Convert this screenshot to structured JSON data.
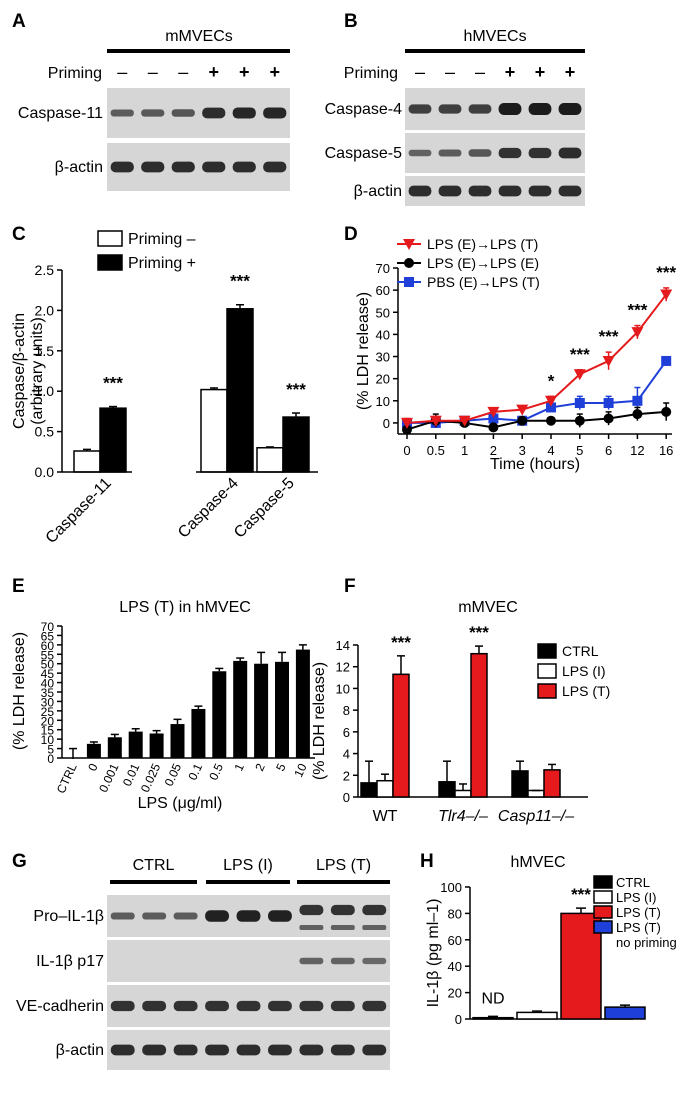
{
  "panels": {
    "A": {
      "letter": "A",
      "header": "mMVECs",
      "priming_label": "Priming",
      "priming_signs": [
        "–",
        "–",
        "–",
        "+",
        "+",
        "+"
      ],
      "blots": [
        {
          "label": "Caspase-11",
          "intensity": [
            0.45,
            0.48,
            0.5,
            0.85,
            0.9,
            0.9
          ]
        },
        {
          "label": "β-actin",
          "intensity": [
            0.85,
            0.85,
            0.85,
            0.85,
            0.85,
            0.85
          ]
        }
      ]
    },
    "B": {
      "letter": "B",
      "header": "hMVECs",
      "priming_label": "Priming",
      "priming_signs": [
        "–",
        "–",
        "–",
        "+",
        "+",
        "+"
      ],
      "blots": [
        {
          "label": "Caspase-4",
          "intensity": [
            0.7,
            0.7,
            0.7,
            1.0,
            1.0,
            1.0
          ]
        },
        {
          "label": "Caspase-5",
          "intensity": [
            0.4,
            0.45,
            0.5,
            0.8,
            0.8,
            0.85
          ]
        },
        {
          "label": "β-actin",
          "intensity": [
            0.85,
            0.85,
            0.85,
            0.85,
            0.85,
            0.85
          ]
        }
      ]
    },
    "G": {
      "letter": "G",
      "groups": [
        "CTRL",
        "LPS (I)",
        "LPS (T)"
      ],
      "blots": [
        {
          "label": "Pro–IL-1β",
          "intensity": [
            0.45,
            0.45,
            0.45,
            0.95,
            0.95,
            0.95,
            0.8,
            0.8,
            0.8
          ]
        },
        {
          "label": "IL-1β p17",
          "intensity": [
            0,
            0,
            0,
            0,
            0,
            0,
            0.4,
            0.4,
            0.35
          ]
        },
        {
          "label": "VE-cadherin",
          "intensity": [
            0.8,
            0.8,
            0.8,
            0.8,
            0.8,
            0.8,
            0.8,
            0.8,
            0.8
          ]
        },
        {
          "label": "β-actin",
          "intensity": [
            0.85,
            0.85,
            0.85,
            0.85,
            0.85,
            0.85,
            0.85,
            0.85,
            0.85
          ]
        }
      ]
    }
  },
  "chart_data": [
    {
      "panel": "C",
      "type": "bar",
      "ylabel": "Caspase/β-actin (arbitrary units)",
      "ylabel_lines": [
        "Caspase/β-actin",
        "(arbitrary units)"
      ],
      "ylim": [
        0,
        2.5
      ],
      "yticks": [
        "0.0",
        "0.5",
        "1.0",
        "1.5",
        "2.0",
        "2.5"
      ],
      "categories": [
        "Caspase-11",
        "Caspase-4",
        "Caspase-5"
      ],
      "series": [
        {
          "name": "Priming –",
          "color": "#ffffff",
          "values": [
            0.26,
            1.02,
            0.3
          ],
          "errors": [
            0.02,
            0.02,
            0.01
          ]
        },
        {
          "name": "Priming +",
          "color": "#000000",
          "values": [
            0.79,
            2.02,
            0.68
          ],
          "errors": [
            0.02,
            0.05,
            0.05
          ]
        }
      ],
      "significance": [
        "***",
        "***",
        "***"
      ]
    },
    {
      "panel": "D",
      "type": "line",
      "ylabel": "(% LDH release)",
      "xlabel": "Time (hours)",
      "x": [
        "0",
        "0.5",
        "1",
        "2",
        "3",
        "4",
        "5",
        "6",
        "12",
        "16"
      ],
      "ylim": [
        -5,
        70
      ],
      "yticks": [
        "0",
        "10",
        "20",
        "30",
        "40",
        "50",
        "60",
        "70"
      ],
      "series": [
        {
          "name": "LPS (E)→LPS (T)",
          "color": "#e41a1c",
          "marker": "triangle-down",
          "values": [
            0,
            1,
            1,
            5,
            6,
            10,
            22,
            28,
            41,
            58
          ],
          "errors": [
            2,
            2,
            1,
            1,
            1,
            2,
            2,
            4,
            3,
            3
          ]
        },
        {
          "name": "LPS (E)→LPS (E)",
          "color": "#000000",
          "marker": "circle",
          "values": [
            -3,
            1,
            0,
            -2,
            1,
            1,
            1,
            2,
            4,
            5
          ],
          "errors": [
            1,
            3,
            1,
            1,
            1,
            1,
            3,
            3,
            3,
            4
          ]
        },
        {
          "name": "PBS (E)→LPS (T)",
          "color": "#1f3fd9",
          "marker": "square",
          "values": [
            0,
            0,
            1,
            2,
            1,
            7,
            9,
            9,
            10,
            28
          ],
          "errors": [
            1,
            1,
            1,
            1,
            1,
            1,
            3,
            3,
            6,
            1
          ]
        }
      ],
      "significance": [
        {
          "x_index": 5,
          "label": "*"
        },
        {
          "x_index": 6,
          "label": "***"
        },
        {
          "x_index": 7,
          "label": "***"
        },
        {
          "x_index": 8,
          "label": "***"
        },
        {
          "x_index": 9,
          "label": "***"
        }
      ]
    },
    {
      "panel": "E",
      "type": "bar",
      "title": "LPS (T) in hMVEC",
      "ylabel": "(% LDH release)",
      "xlabel": "LPS (μg/ml)",
      "ylim": [
        0,
        70
      ],
      "yticks": [
        "0",
        "5",
        "10",
        "15",
        "20",
        "25",
        "30",
        "35",
        "40",
        "45",
        "50",
        "55",
        "60",
        "65",
        "70"
      ],
      "categories": [
        "CTRL",
        "0",
        "0.001",
        "0.01",
        "0.025",
        "0.05",
        "0.1",
        "0.5",
        "1",
        "2",
        "5",
        "10"
      ],
      "values": [
        0,
        7.5,
        11,
        14,
        13,
        18,
        26,
        46,
        51.5,
        50,
        51,
        57.5
      ],
      "errors": [
        5,
        1,
        1.5,
        1.5,
        1.5,
        2.5,
        1.5,
        1.5,
        1.5,
        6,
        5,
        2.5
      ],
      "color": "#000000"
    },
    {
      "panel": "F",
      "type": "bar",
      "title": "mMVEC",
      "ylabel": "(% LDH release)",
      "ylim": [
        0,
        14
      ],
      "yticks": [
        "0",
        "2",
        "4",
        "6",
        "8",
        "10",
        "12",
        "14"
      ],
      "categories": [
        "WT",
        "Tlr4–/–",
        "Casp11–/–"
      ],
      "series": [
        {
          "name": "CTRL",
          "color": "#000000",
          "values": [
            1.3,
            1.4,
            2.4
          ],
          "errors": [
            2.0,
            1.9,
            0.9
          ]
        },
        {
          "name": "LPS (I)",
          "color": "#ffffff",
          "values": [
            1.5,
            0.6,
            0.6
          ],
          "errors": [
            0.6,
            0.6,
            0.0
          ]
        },
        {
          "name": "LPS (T)",
          "color": "#e41a1c",
          "values": [
            11.3,
            13.2,
            2.5
          ],
          "errors": [
            1.7,
            0.7,
            0.5
          ]
        }
      ],
      "significance": [
        "***",
        "***",
        ""
      ]
    },
    {
      "panel": "H",
      "type": "bar",
      "title": "hMVEC",
      "ylabel": "IL-1β (pg ml–1)",
      "ylim": [
        0,
        100
      ],
      "yticks": [
        "0",
        "20",
        "40",
        "60",
        "80",
        "100"
      ],
      "categories": [
        "CTRL",
        "LPS (I)",
        "LPS (T)",
        "LPS (T)"
      ],
      "legend_labels": [
        "CTRL",
        "LPS (I)",
        "LPS (T)",
        "LPS (T)"
      ],
      "legend_note": "no priming",
      "colors": [
        "#000000",
        "#ffffff",
        "#e41a1c",
        "#1f3fd9"
      ],
      "values": [
        1,
        5,
        80,
        9
      ],
      "errors": [
        1,
        1,
        4,
        1.5
      ],
      "annotations": [
        "ND",
        "",
        "***",
        ""
      ]
    }
  ]
}
